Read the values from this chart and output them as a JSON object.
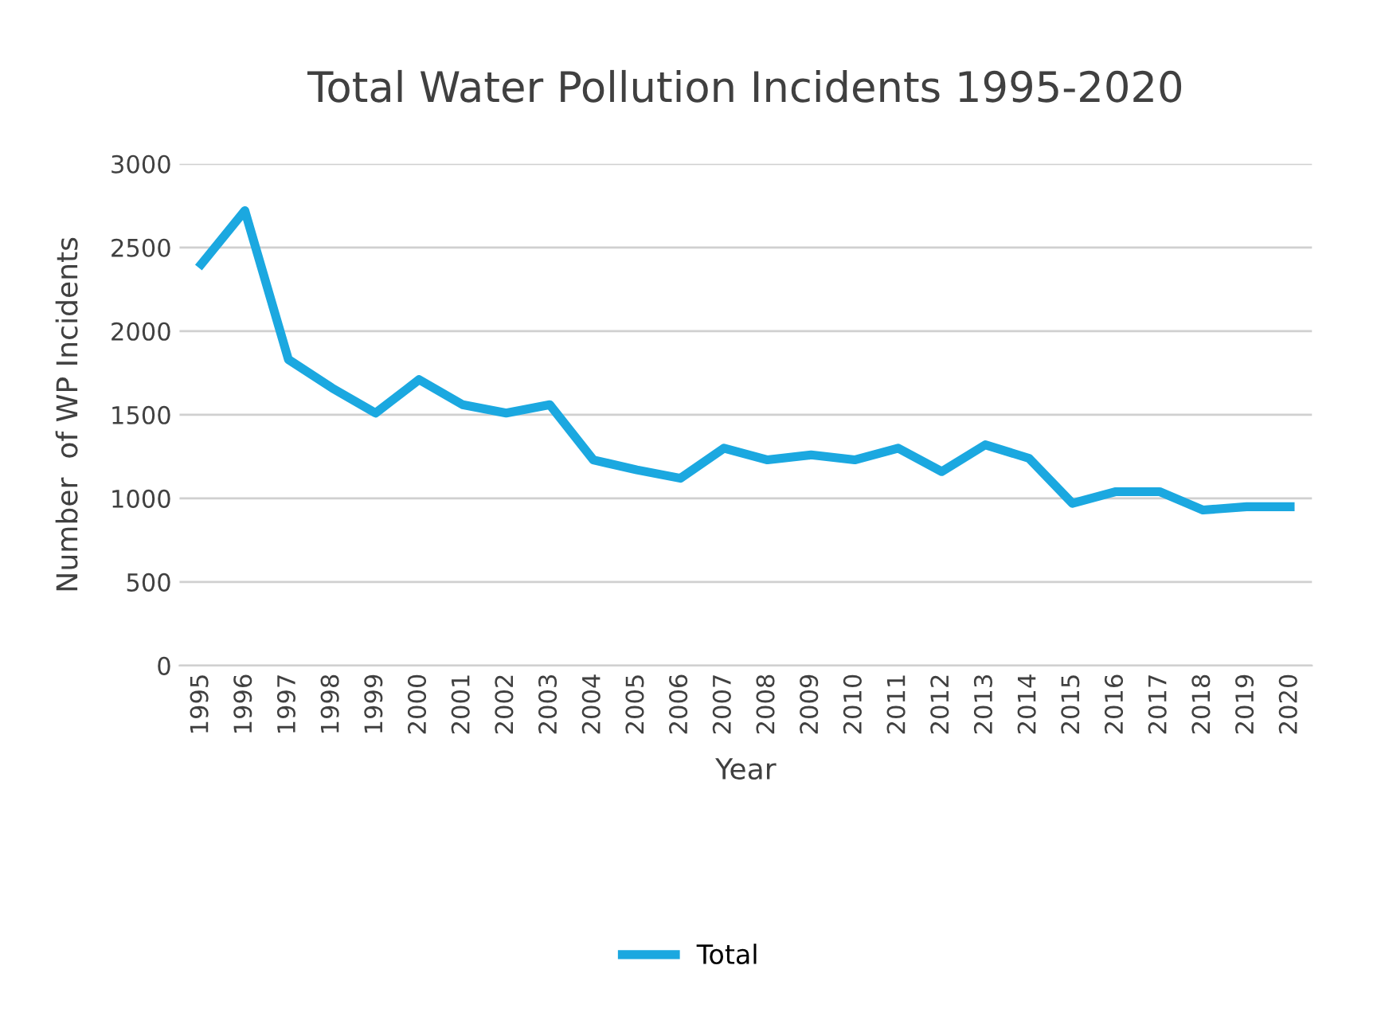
{
  "chart_data": {
    "type": "line",
    "title": "Total Water Pollution Incidents 1995-2020",
    "xlabel": "Year",
    "ylabel": "Number  of WP Incidents",
    "categories": [
      "1995",
      "1996",
      "1997",
      "1998",
      "1999",
      "2000",
      "2001",
      "2002",
      "2003",
      "2004",
      "2005",
      "2006",
      "2007",
      "2008",
      "2009",
      "2010",
      "2011",
      "2012",
      "2013",
      "2014",
      "2015",
      "2016",
      "2017",
      "2018",
      "2019",
      "2020"
    ],
    "series": [
      {
        "name": "Total",
        "color": "#1ba8e0",
        "values": [
          2400,
          2720,
          1830,
          1660,
          1510,
          1710,
          1560,
          1510,
          1560,
          1230,
          1170,
          1120,
          1300,
          1230,
          1260,
          1230,
          1300,
          1160,
          1320,
          1240,
          970,
          1040,
          1040,
          930,
          950,
          950
        ]
      }
    ],
    "ylim": [
      0,
      3000
    ],
    "yticks": [
      0,
      500,
      1000,
      1500,
      2000,
      2500,
      3000
    ],
    "grid": "y",
    "legend": "bottom",
    "marker": "none",
    "line_style": "solid"
  }
}
